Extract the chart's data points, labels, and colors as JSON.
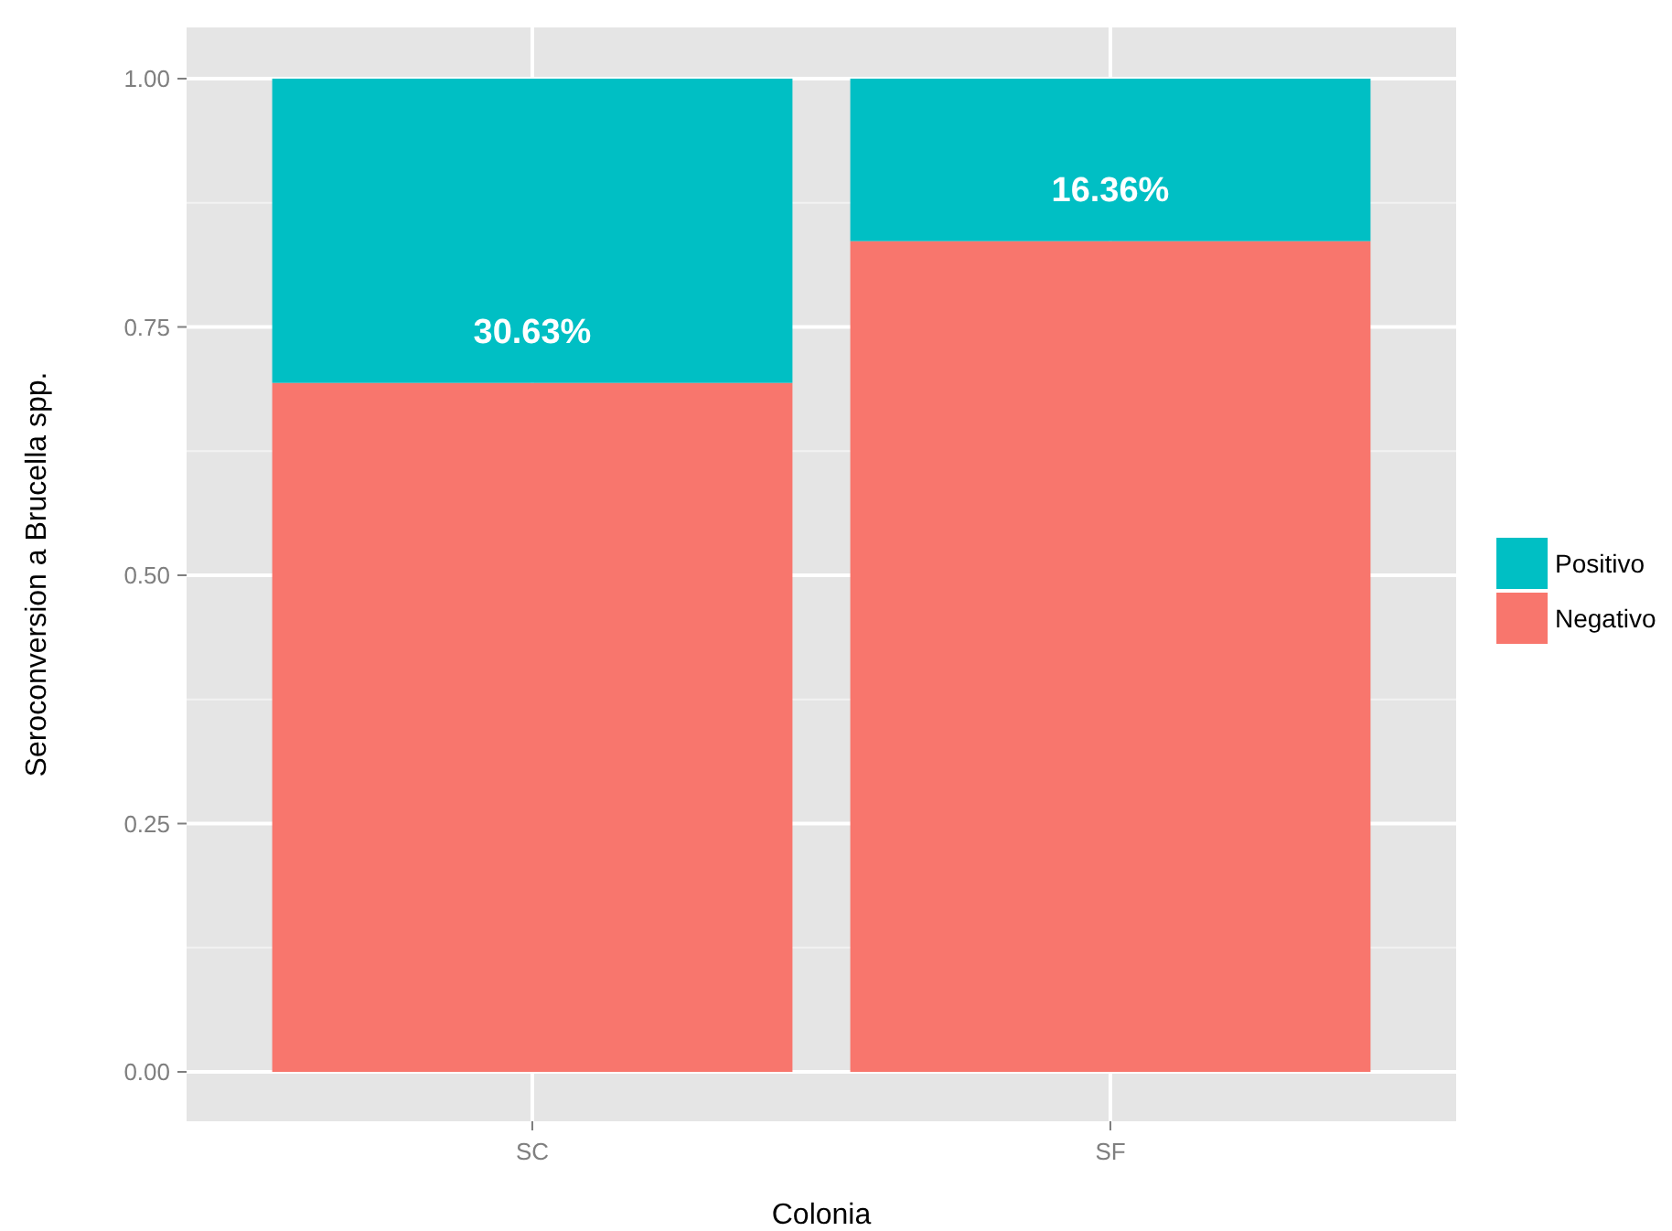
{
  "chart_data": {
    "type": "bar",
    "xlabel": "Colonia",
    "ylabel": "Seroconversion a Brucella spp.",
    "categories": [
      "SC",
      "SF"
    ],
    "stacked": true,
    "series": [
      {
        "name": "Negativo",
        "color": "#f8766d",
        "values": [
          0.6937,
          0.8364
        ]
      },
      {
        "name": "Positivo",
        "color": "#00bfc4",
        "values": [
          0.3063,
          0.1636
        ],
        "value_labels": [
          "30.63%",
          "16.36%"
        ]
      }
    ],
    "ylim": [
      0,
      1
    ],
    "yticks": [
      {
        "value": 0,
        "label": "0.00"
      },
      {
        "value": 0.25,
        "label": "0.25"
      },
      {
        "value": 0.5,
        "label": "0.50"
      },
      {
        "value": 0.75,
        "label": "0.75"
      },
      {
        "value": 1,
        "label": "1.00"
      }
    ],
    "grid": true,
    "legend": "right"
  }
}
